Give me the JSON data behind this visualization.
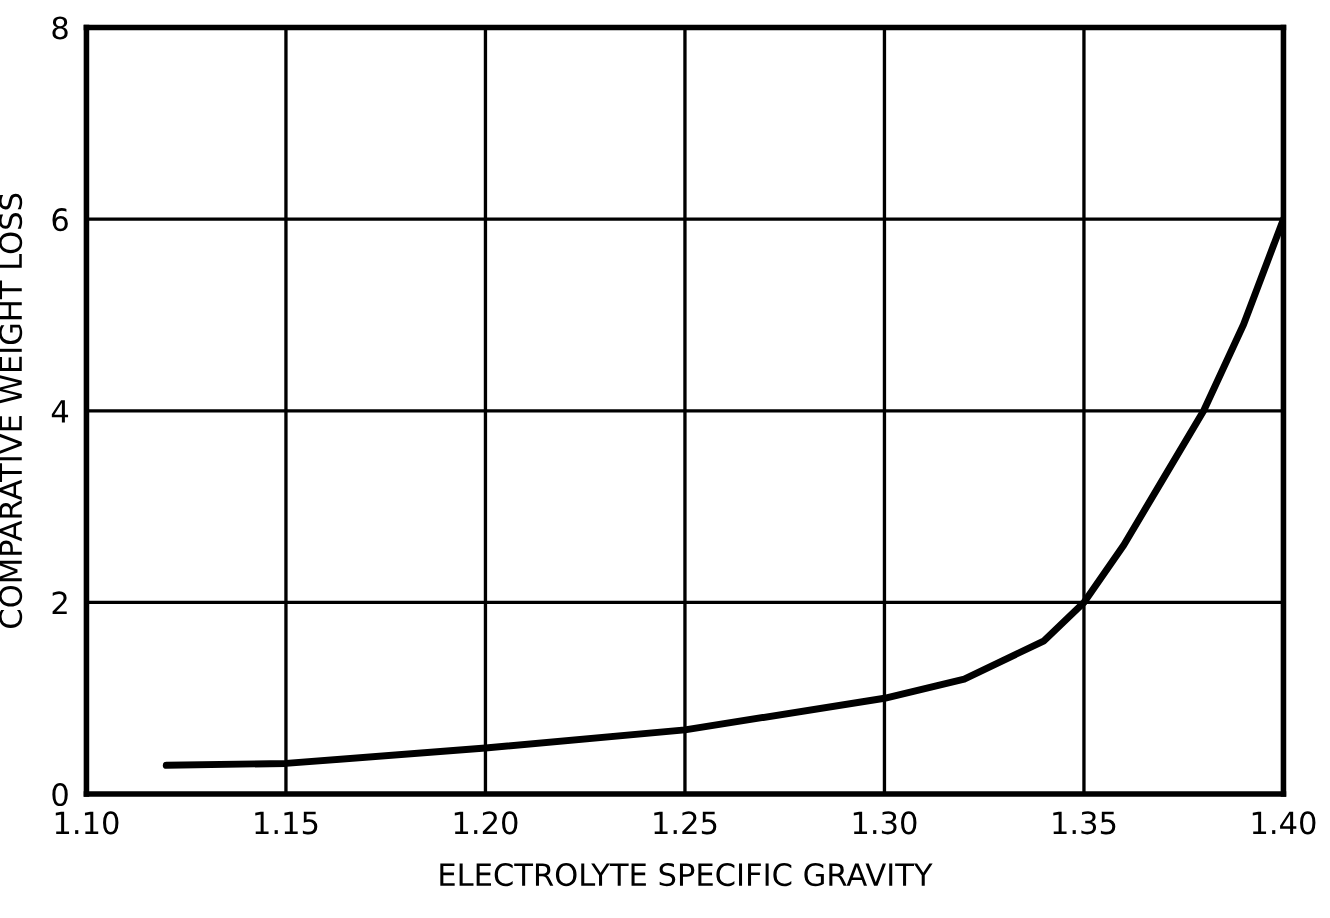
{
  "chart_data": {
    "type": "line",
    "xlabel": "ELECTROLYTE SPECIFIC GRAVITY",
    "ylabel": "COMPARATIVE WEIGHT LOSS",
    "x": [
      1.12,
      1.15,
      1.2,
      1.25,
      1.3,
      1.32,
      1.34,
      1.35,
      1.36,
      1.37,
      1.38,
      1.39,
      1.4
    ],
    "series": [
      {
        "color": "#000000",
        "values": [
          0.3,
          0.32,
          0.48,
          0.67,
          1.0,
          1.2,
          1.6,
          2.0,
          2.6,
          3.3,
          4.0,
          4.9,
          6.0
        ]
      }
    ],
    "xlim": [
      1.1,
      1.4
    ],
    "ylim": [
      0,
      8
    ],
    "xticks": [
      {
        "value": 1.1,
        "label": "1.10"
      },
      {
        "value": 1.15,
        "label": "1.15"
      },
      {
        "value": 1.2,
        "label": "1.20"
      },
      {
        "value": 1.25,
        "label": "1.25"
      },
      {
        "value": 1.3,
        "label": "1.30"
      },
      {
        "value": 1.35,
        "label": "1.35"
      },
      {
        "value": 1.4,
        "label": "1.40"
      }
    ],
    "yticks": [
      0,
      2,
      4,
      6,
      8
    ],
    "grid": true
  }
}
